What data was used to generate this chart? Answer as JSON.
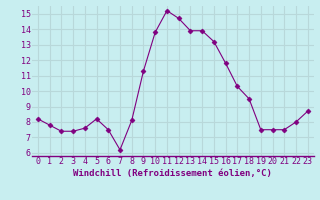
{
  "x": [
    0,
    1,
    2,
    3,
    4,
    5,
    6,
    7,
    8,
    9,
    10,
    11,
    12,
    13,
    14,
    15,
    16,
    17,
    18,
    19,
    20,
    21,
    22,
    23
  ],
  "y": [
    8.2,
    7.8,
    7.4,
    7.4,
    7.6,
    8.2,
    7.5,
    6.2,
    8.1,
    11.3,
    13.8,
    15.2,
    14.7,
    13.9,
    13.9,
    13.2,
    11.8,
    10.3,
    9.5,
    7.5,
    7.5,
    7.5,
    8.0,
    8.7
  ],
  "line_color": "#800080",
  "marker": "D",
  "marker_size": 2.5,
  "linewidth": 0.8,
  "xlabel": "Windchill (Refroidissement éolien,°C)",
  "xlim": [
    -0.5,
    23.5
  ],
  "ylim": [
    5.8,
    15.5
  ],
  "yticks": [
    6,
    7,
    8,
    9,
    10,
    11,
    12,
    13,
    14,
    15
  ],
  "xticks": [
    0,
    1,
    2,
    3,
    4,
    5,
    6,
    7,
    8,
    9,
    10,
    11,
    12,
    13,
    14,
    15,
    16,
    17,
    18,
    19,
    20,
    21,
    22,
    23
  ],
  "background_color": "#c8eef0",
  "grid_color": "#b8d8da",
  "tick_color": "#800080",
  "label_color": "#800080",
  "xlabel_fontsize": 6.5,
  "tick_fontsize": 6.0
}
